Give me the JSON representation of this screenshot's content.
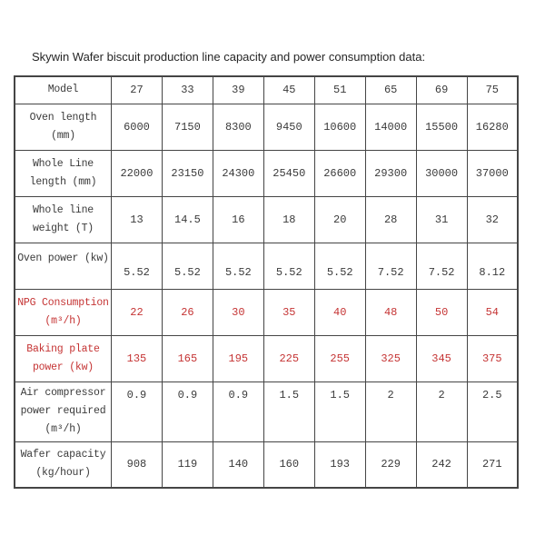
{
  "page": {
    "title": "Skywin Wafer biscuit production line capacity and power consumption data:"
  },
  "colors": {
    "text": "#3a3a3a",
    "red": "#c53434",
    "border": "#454545",
    "page_background": "#ffffff"
  },
  "table": {
    "rows": [
      {
        "id": "model",
        "label_lines": [
          "Model"
        ],
        "values": [
          "27",
          "33",
          "39",
          "45",
          "51",
          "65",
          "69",
          "75"
        ],
        "red": false
      },
      {
        "id": "oven-length",
        "label_lines": [
          "Oven length",
          "(mm)"
        ],
        "values": [
          "6000",
          "7150",
          "8300",
          "9450",
          "10600",
          "14000",
          "15500",
          "16280"
        ],
        "red": false
      },
      {
        "id": "whole-line-length",
        "label_lines": [
          "Whole Line",
          "length (mm)"
        ],
        "values": [
          "22000",
          "23150",
          "24300",
          "25450",
          "26600",
          "29300",
          "30000",
          "37000"
        ],
        "red": false
      },
      {
        "id": "whole-line-weight",
        "label_lines": [
          "Whole line",
          "weight (T)"
        ],
        "values": [
          "13",
          "14.5",
          "16",
          "18",
          "20",
          "28",
          "31",
          "32"
        ],
        "red": false
      },
      {
        "id": "oven-power",
        "label_lines": [
          "Oven power (kw)"
        ],
        "values": [
          "5.52",
          "5.52",
          "5.52",
          "5.52",
          "5.52",
          "7.52",
          "7.52",
          "8.12"
        ],
        "red": false
      },
      {
        "id": "npg-consumption",
        "label_lines": [
          "NPG Consumption",
          "(m³/h)"
        ],
        "values": [
          "22",
          "26",
          "30",
          "35",
          "40",
          "48",
          "50",
          "54"
        ],
        "red": true
      },
      {
        "id": "baking-plate-power",
        "label_lines": [
          "Baking plate",
          "power (kw)"
        ],
        "values": [
          "135",
          "165",
          "195",
          "225",
          "255",
          "325",
          "345",
          "375"
        ],
        "red": true
      },
      {
        "id": "air-compressor-power",
        "label_lines": [
          "Air compressor",
          "power required",
          "(m³/h)"
        ],
        "values": [
          "0.9",
          "0.9",
          "0.9",
          "1.5",
          "1.5",
          "2",
          "2",
          "2.5"
        ],
        "red": false
      },
      {
        "id": "wafer-capacity",
        "label_lines": [
          "Wafer capacity",
          "(kg/hour)"
        ],
        "values": [
          "908",
          "119",
          "140",
          "160",
          "193",
          "229",
          "242",
          "271"
        ],
        "red": false
      }
    ]
  }
}
